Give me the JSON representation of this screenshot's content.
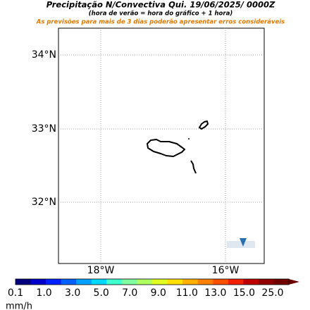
{
  "header": {
    "title": "Precipitação N/Convectiva  Qui. 19/06/2025/ 0000Z",
    "subtitle": "(hora de verão = hora do gráfico + 1 hora)",
    "warning": "As previsões para mais de 3 dias poderão apresentar erros consideráveis"
  },
  "map": {
    "lat_labels": [
      "34°N",
      "33°N",
      "32°N"
    ],
    "lon_labels": [
      "18°W",
      "16°W"
    ]
  },
  "colorbar": {
    "labels": [
      "0.1",
      "1.0",
      "3.0",
      "5.0",
      "7.0",
      "9.0",
      "11.0",
      "13.0",
      "15.0",
      "25.0"
    ],
    "unit": "mm/h"
  }
}
